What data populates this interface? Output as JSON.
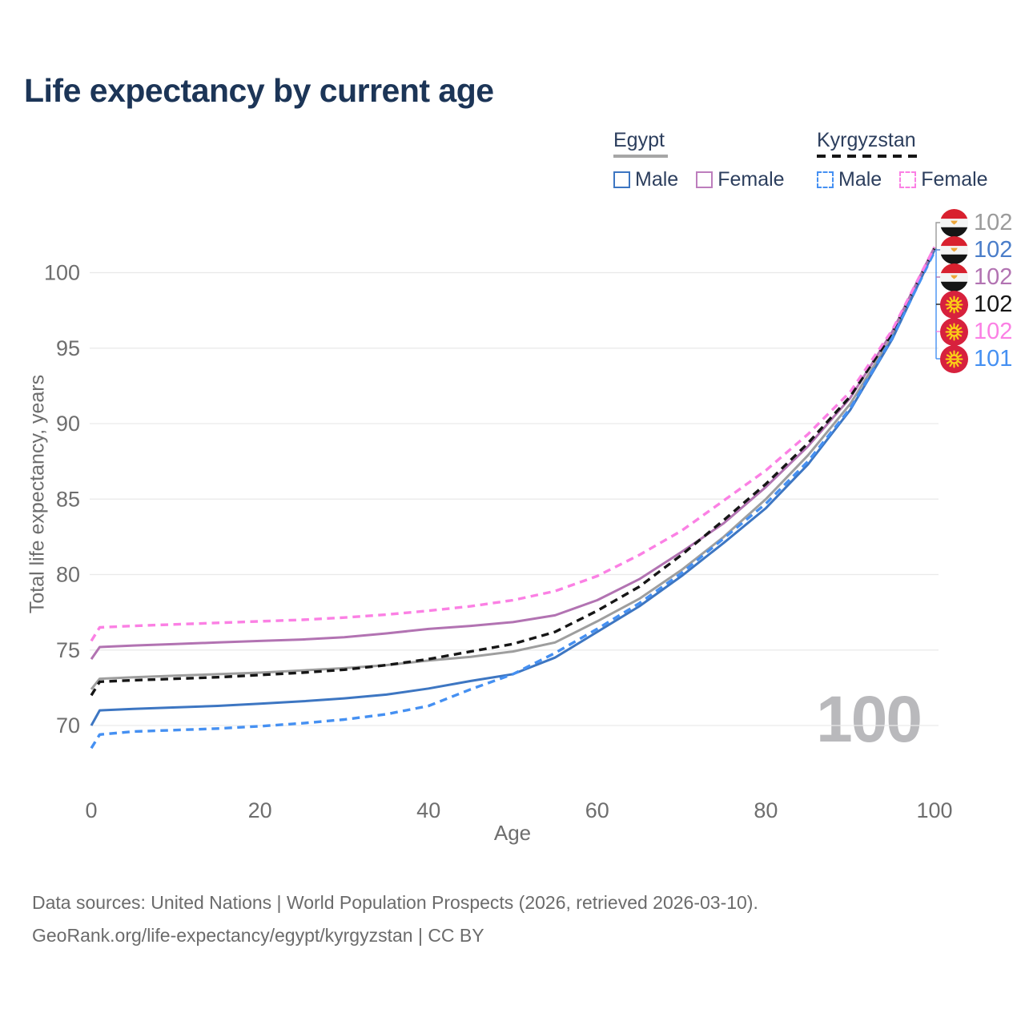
{
  "title": "Life expectancy by current age",
  "watermark": "100",
  "legend": {
    "groups": [
      {
        "label": "Egypt",
        "underline": "solid",
        "underline_color": "#a6a6a6",
        "items": [
          {
            "label": "Male",
            "color": "#3d76c2",
            "dashed": false
          },
          {
            "label": "Female",
            "color": "#bd7ebd",
            "dashed": false
          }
        ]
      },
      {
        "label": "Kyrgyzstan",
        "underline": "dashed",
        "underline_color": "#161616",
        "items": [
          {
            "label": "Male",
            "color": "#4590f2",
            "dashed": true
          },
          {
            "label": "Female",
            "color": "#fb80e4",
            "dashed": true
          }
        ]
      }
    ]
  },
  "chart_data": {
    "type": "line",
    "title": "Life expectancy by current age",
    "xlabel": "Age",
    "ylabel": "Total life expectancy, years",
    "x_ticks": [
      0,
      20,
      40,
      60,
      80,
      100
    ],
    "y_ticks": [
      70,
      75,
      80,
      85,
      90,
      95,
      100
    ],
    "xlim": [
      0,
      100
    ],
    "ylim": [
      67.5,
      103
    ],
    "grid": "horizontal",
    "legend_position": "top-right",
    "ages": [
      0,
      1,
      5,
      10,
      15,
      20,
      25,
      30,
      35,
      40,
      45,
      50,
      55,
      60,
      65,
      70,
      75,
      80,
      85,
      90,
      95,
      100
    ],
    "series": [
      {
        "name": "Egypt — All",
        "id": "egypt-total",
        "color": "#9e9e9e",
        "dashed": false,
        "values": [
          72.4,
          73.1,
          73.2,
          73.3,
          73.4,
          73.5,
          73.65,
          73.8,
          74.0,
          74.3,
          74.55,
          74.9,
          75.5,
          76.9,
          78.4,
          80.3,
          82.5,
          85.0,
          87.9,
          91.3,
          95.8,
          101.6
        ]
      },
      {
        "name": "Egypt — Male",
        "id": "egypt-male",
        "color": "#3d76c2",
        "dashed": false,
        "values": [
          70.0,
          71.0,
          71.1,
          71.2,
          71.3,
          71.45,
          71.6,
          71.8,
          72.05,
          72.45,
          72.95,
          73.4,
          74.5,
          76.2,
          77.9,
          79.9,
          82.1,
          84.4,
          87.3,
          90.9,
          95.6,
          101.5
        ]
      },
      {
        "name": "Egypt — Female",
        "id": "egypt-female",
        "color": "#b273b2",
        "dashed": false,
        "values": [
          74.4,
          75.2,
          75.3,
          75.4,
          75.5,
          75.6,
          75.7,
          75.85,
          76.1,
          76.4,
          76.6,
          76.85,
          77.3,
          78.3,
          79.7,
          81.5,
          83.4,
          85.8,
          88.5,
          91.7,
          96.1,
          101.7
        ]
      },
      {
        "name": "Kyrgyzstan — All",
        "id": "kyrgyzstan-total",
        "color": "#161616",
        "dashed": true,
        "values": [
          72.0,
          72.9,
          73.0,
          73.1,
          73.2,
          73.35,
          73.5,
          73.7,
          74.0,
          74.4,
          74.9,
          75.4,
          76.2,
          77.6,
          79.2,
          81.3,
          83.6,
          86.0,
          88.7,
          91.8,
          96.0,
          101.6
        ]
      },
      {
        "name": "Kyrgyzstan — Male",
        "id": "kyrgyzstan-male",
        "color": "#4590f2",
        "dashed": true,
        "values": [
          68.5,
          69.4,
          69.6,
          69.7,
          69.8,
          69.95,
          70.15,
          70.4,
          70.75,
          71.3,
          72.4,
          73.4,
          74.8,
          76.4,
          78.1,
          80.1,
          82.4,
          84.7,
          87.5,
          91.0,
          95.7,
          101.4
        ]
      },
      {
        "name": "Kyrgyzstan — Female",
        "id": "kyrgyzstan-female",
        "color": "#fb80e4",
        "dashed": true,
        "values": [
          75.6,
          76.5,
          76.6,
          76.7,
          76.8,
          76.9,
          77.0,
          77.15,
          77.35,
          77.6,
          77.9,
          78.3,
          78.9,
          79.9,
          81.3,
          82.9,
          84.9,
          86.9,
          89.3,
          92.1,
          96.2,
          101.7
        ]
      }
    ]
  },
  "end_labels": [
    {
      "flag": "egypt",
      "value": "102",
      "color": "#9b9b9b"
    },
    {
      "flag": "egypt",
      "value": "102",
      "color": "#4a7dc9"
    },
    {
      "flag": "egypt",
      "value": "102",
      "color": "#b273b2"
    },
    {
      "flag": "kyrgyzstan",
      "value": "102",
      "color": "#161616"
    },
    {
      "flag": "kyrgyzstan",
      "value": "102",
      "color": "#fb80e4"
    },
    {
      "flag": "kyrgyzstan",
      "value": "101",
      "color": "#4590f2"
    }
  ],
  "footer": {
    "line1": "Data sources: United Nations | World Population Prospects (2026, retrieved 2026-03-10).",
    "line2": "GeoRank.org/life-expectancy/egypt/kyrgyzstan | CC BY"
  }
}
